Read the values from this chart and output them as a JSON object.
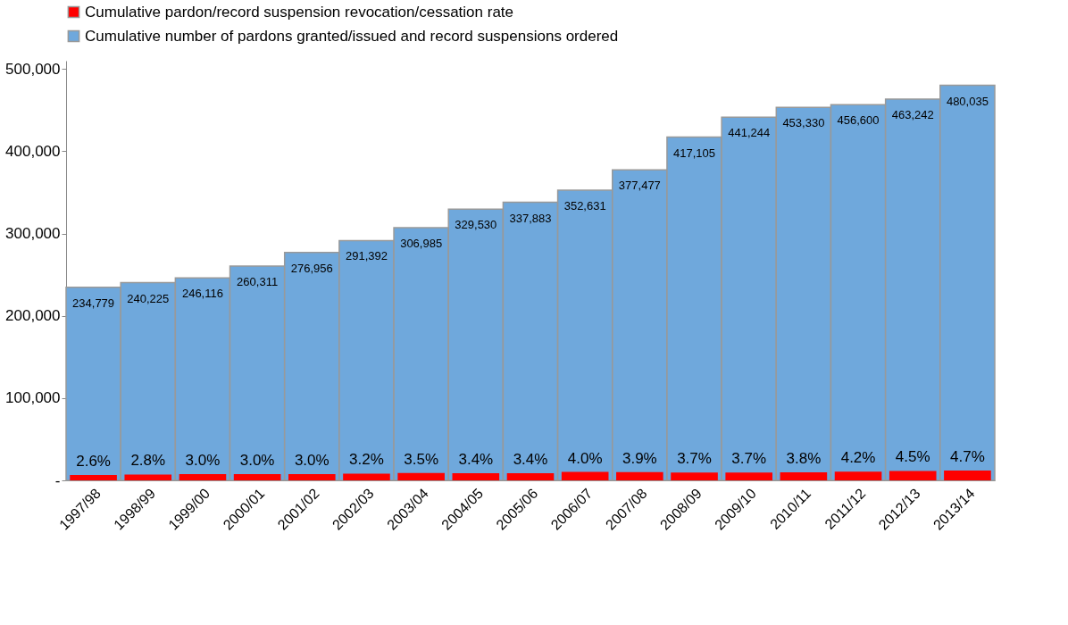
{
  "chart_data": {
    "type": "bar",
    "categories": [
      "1997/98",
      "1998/99",
      "1999/00",
      "2000/01",
      "2001/02",
      "2002/03",
      "2003/04",
      "2004/05",
      "2005/06",
      "2006/07",
      "2007/08",
      "2008/09",
      "2009/10",
      "2010/11",
      "2011/12",
      "2012/13",
      "2013/14"
    ],
    "series": [
      {
        "name": "Cumulative pardon/record suspension revocation/cessation rate",
        "color": "#ff0000",
        "axis": "y2",
        "values": [
          2.6,
          2.8,
          3.0,
          3.0,
          3.0,
          3.2,
          3.5,
          3.4,
          3.4,
          4.0,
          3.9,
          3.7,
          3.7,
          3.8,
          4.2,
          4.5,
          4.7
        ],
        "value_labels": [
          "2.6%",
          "2.8%",
          "3.0%",
          "3.0%",
          "3.0%",
          "3.2%",
          "3.5%",
          "3.4%",
          "3.4%",
          "4.0%",
          "3.9%",
          "3.7%",
          "3.7%",
          "3.8%",
          "4.2%",
          "4.5%",
          "4.7%"
        ]
      },
      {
        "name": "Cumulative number of pardons granted/issued and record suspensions ordered",
        "color": "#6fa8dc",
        "values": [
          234779,
          240225,
          246116,
          260311,
          276956,
          291392,
          306985,
          329530,
          337883,
          352631,
          377477,
          417105,
          441244,
          453330,
          456600,
          463242,
          480035
        ],
        "value_labels": [
          "234,779",
          "240,225",
          "246,116",
          "260,311",
          "276,956",
          "291,392",
          "306,985",
          "329,530",
          "337,883",
          "352,631",
          "377,477",
          "417,105",
          "441,244",
          "453,330",
          "456,600",
          "463,242",
          "480,035"
        ]
      }
    ],
    "ylim": [
      0,
      510000
    ],
    "yticks": [
      {
        "value": 0,
        "label": "-"
      },
      {
        "value": 100000,
        "label": "100,000"
      },
      {
        "value": 200000,
        "label": "200,000"
      },
      {
        "value": 300000,
        "label": "300,000"
      },
      {
        "value": 400000,
        "label": "400,000"
      },
      {
        "value": 500000,
        "label": "500,000"
      }
    ],
    "y2lim": [
      0,
      200
    ],
    "grid": false,
    "legend": "top"
  }
}
